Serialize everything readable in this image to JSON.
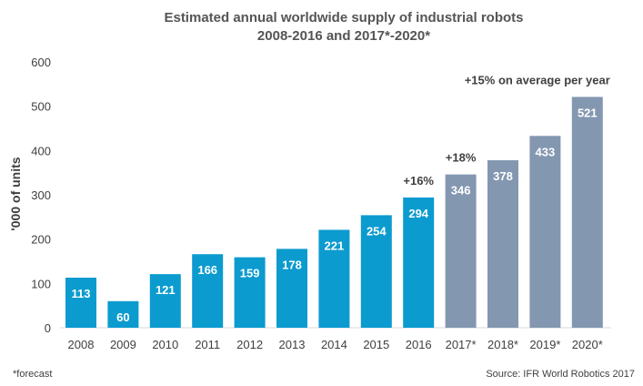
{
  "chart_data": {
    "type": "bar",
    "title": "Estimated annual worldwide supply of industrial robots",
    "subtitle": "2008-2016 and 2017*-2020*",
    "ylabel": "'000 of units",
    "xlabel": "",
    "ylim": [
      0,
      600
    ],
    "yticks": [
      "0",
      "100",
      "200",
      "300",
      "400",
      "500",
      "600"
    ],
    "categories": [
      "2008",
      "2009",
      "2010",
      "2011",
      "2012",
      "2013",
      "2014",
      "2015",
      "2016",
      "2017*",
      "2018*",
      "2019*",
      "2020*"
    ],
    "values": [
      113,
      60,
      121,
      166,
      159,
      178,
      221,
      254,
      294,
      346,
      378,
      433,
      521
    ],
    "forecast": [
      false,
      false,
      false,
      false,
      false,
      false,
      false,
      false,
      false,
      true,
      true,
      true,
      true
    ],
    "annotations": [
      {
        "text": "+16%",
        "category": "2016"
      },
      {
        "text": "+18%",
        "category": "2017*"
      },
      {
        "text": "+15% on average per year",
        "category": "2020*"
      }
    ],
    "grid": false,
    "colors": {
      "actual": "#0b9bcf",
      "forecast": "#8497b0",
      "text": "#404040",
      "title": "#555555"
    }
  },
  "footer": {
    "note": "*forecast",
    "source": "Source: IFR World Robotics 2017"
  }
}
